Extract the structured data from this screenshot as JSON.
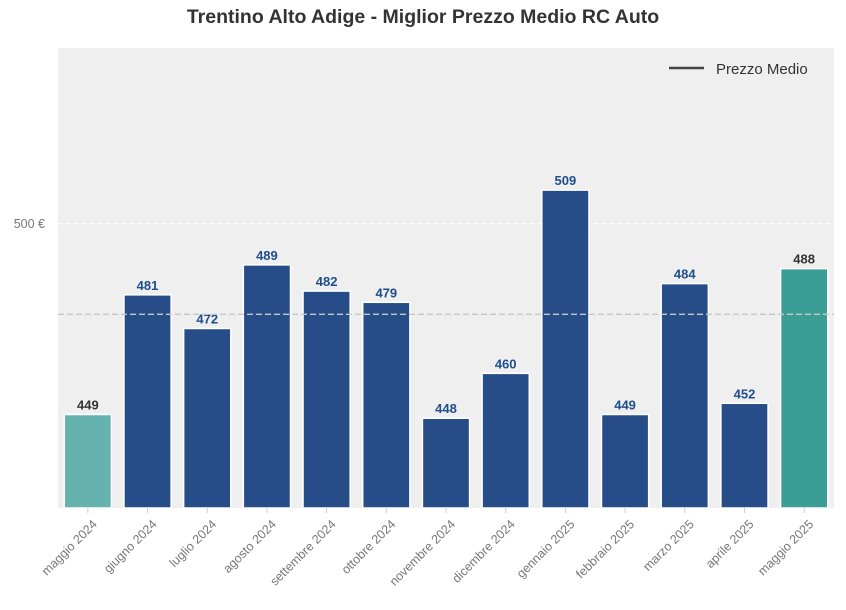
{
  "chart_data": {
    "type": "bar",
    "title": "Trentino Alto Adige - Miglior Prezzo Medio RC Auto",
    "xlabel": "",
    "ylabel": "",
    "categories": [
      "maggio 2024",
      "giugno 2024",
      "luglio 2024",
      "agosto 2024",
      "settembre 2024",
      "ottobre 2024",
      "novembre 2024",
      "dicembre 2024",
      "gennaio 2025",
      "febbraio 2025",
      "marzo 2025",
      "aprile 2025",
      "maggio 2025"
    ],
    "values": [
      449,
      481,
      472,
      489,
      482,
      479,
      448,
      460,
      509,
      449,
      484,
      452,
      488
    ],
    "value_labels": [
      "449",
      "481",
      "472",
      "489",
      "482",
      "479",
      "448",
      "460",
      "509",
      "449",
      "484",
      "452",
      "488"
    ],
    "ylim": [
      424,
      547
    ],
    "yticks": [
      500
    ],
    "ytick_labels": [
      "500 €"
    ],
    "reference_line": {
      "label": "Prezzo Medio",
      "value": 475.8
    },
    "legend": {
      "entries": [
        "Prezzo Medio"
      ],
      "placement": "top-right"
    },
    "grid": true,
    "colors": {
      "first_bar": "#66b2ae",
      "middle_bars": "#264d87",
      "last_bar": "#3a9e97",
      "value_label_middle": "#1f4e8c",
      "value_label_ends": "#333333",
      "plot_background": "#efefef",
      "reference_line": "#c8c8c8",
      "legend_line": "#444444",
      "tick_text": "#777777"
    }
  }
}
